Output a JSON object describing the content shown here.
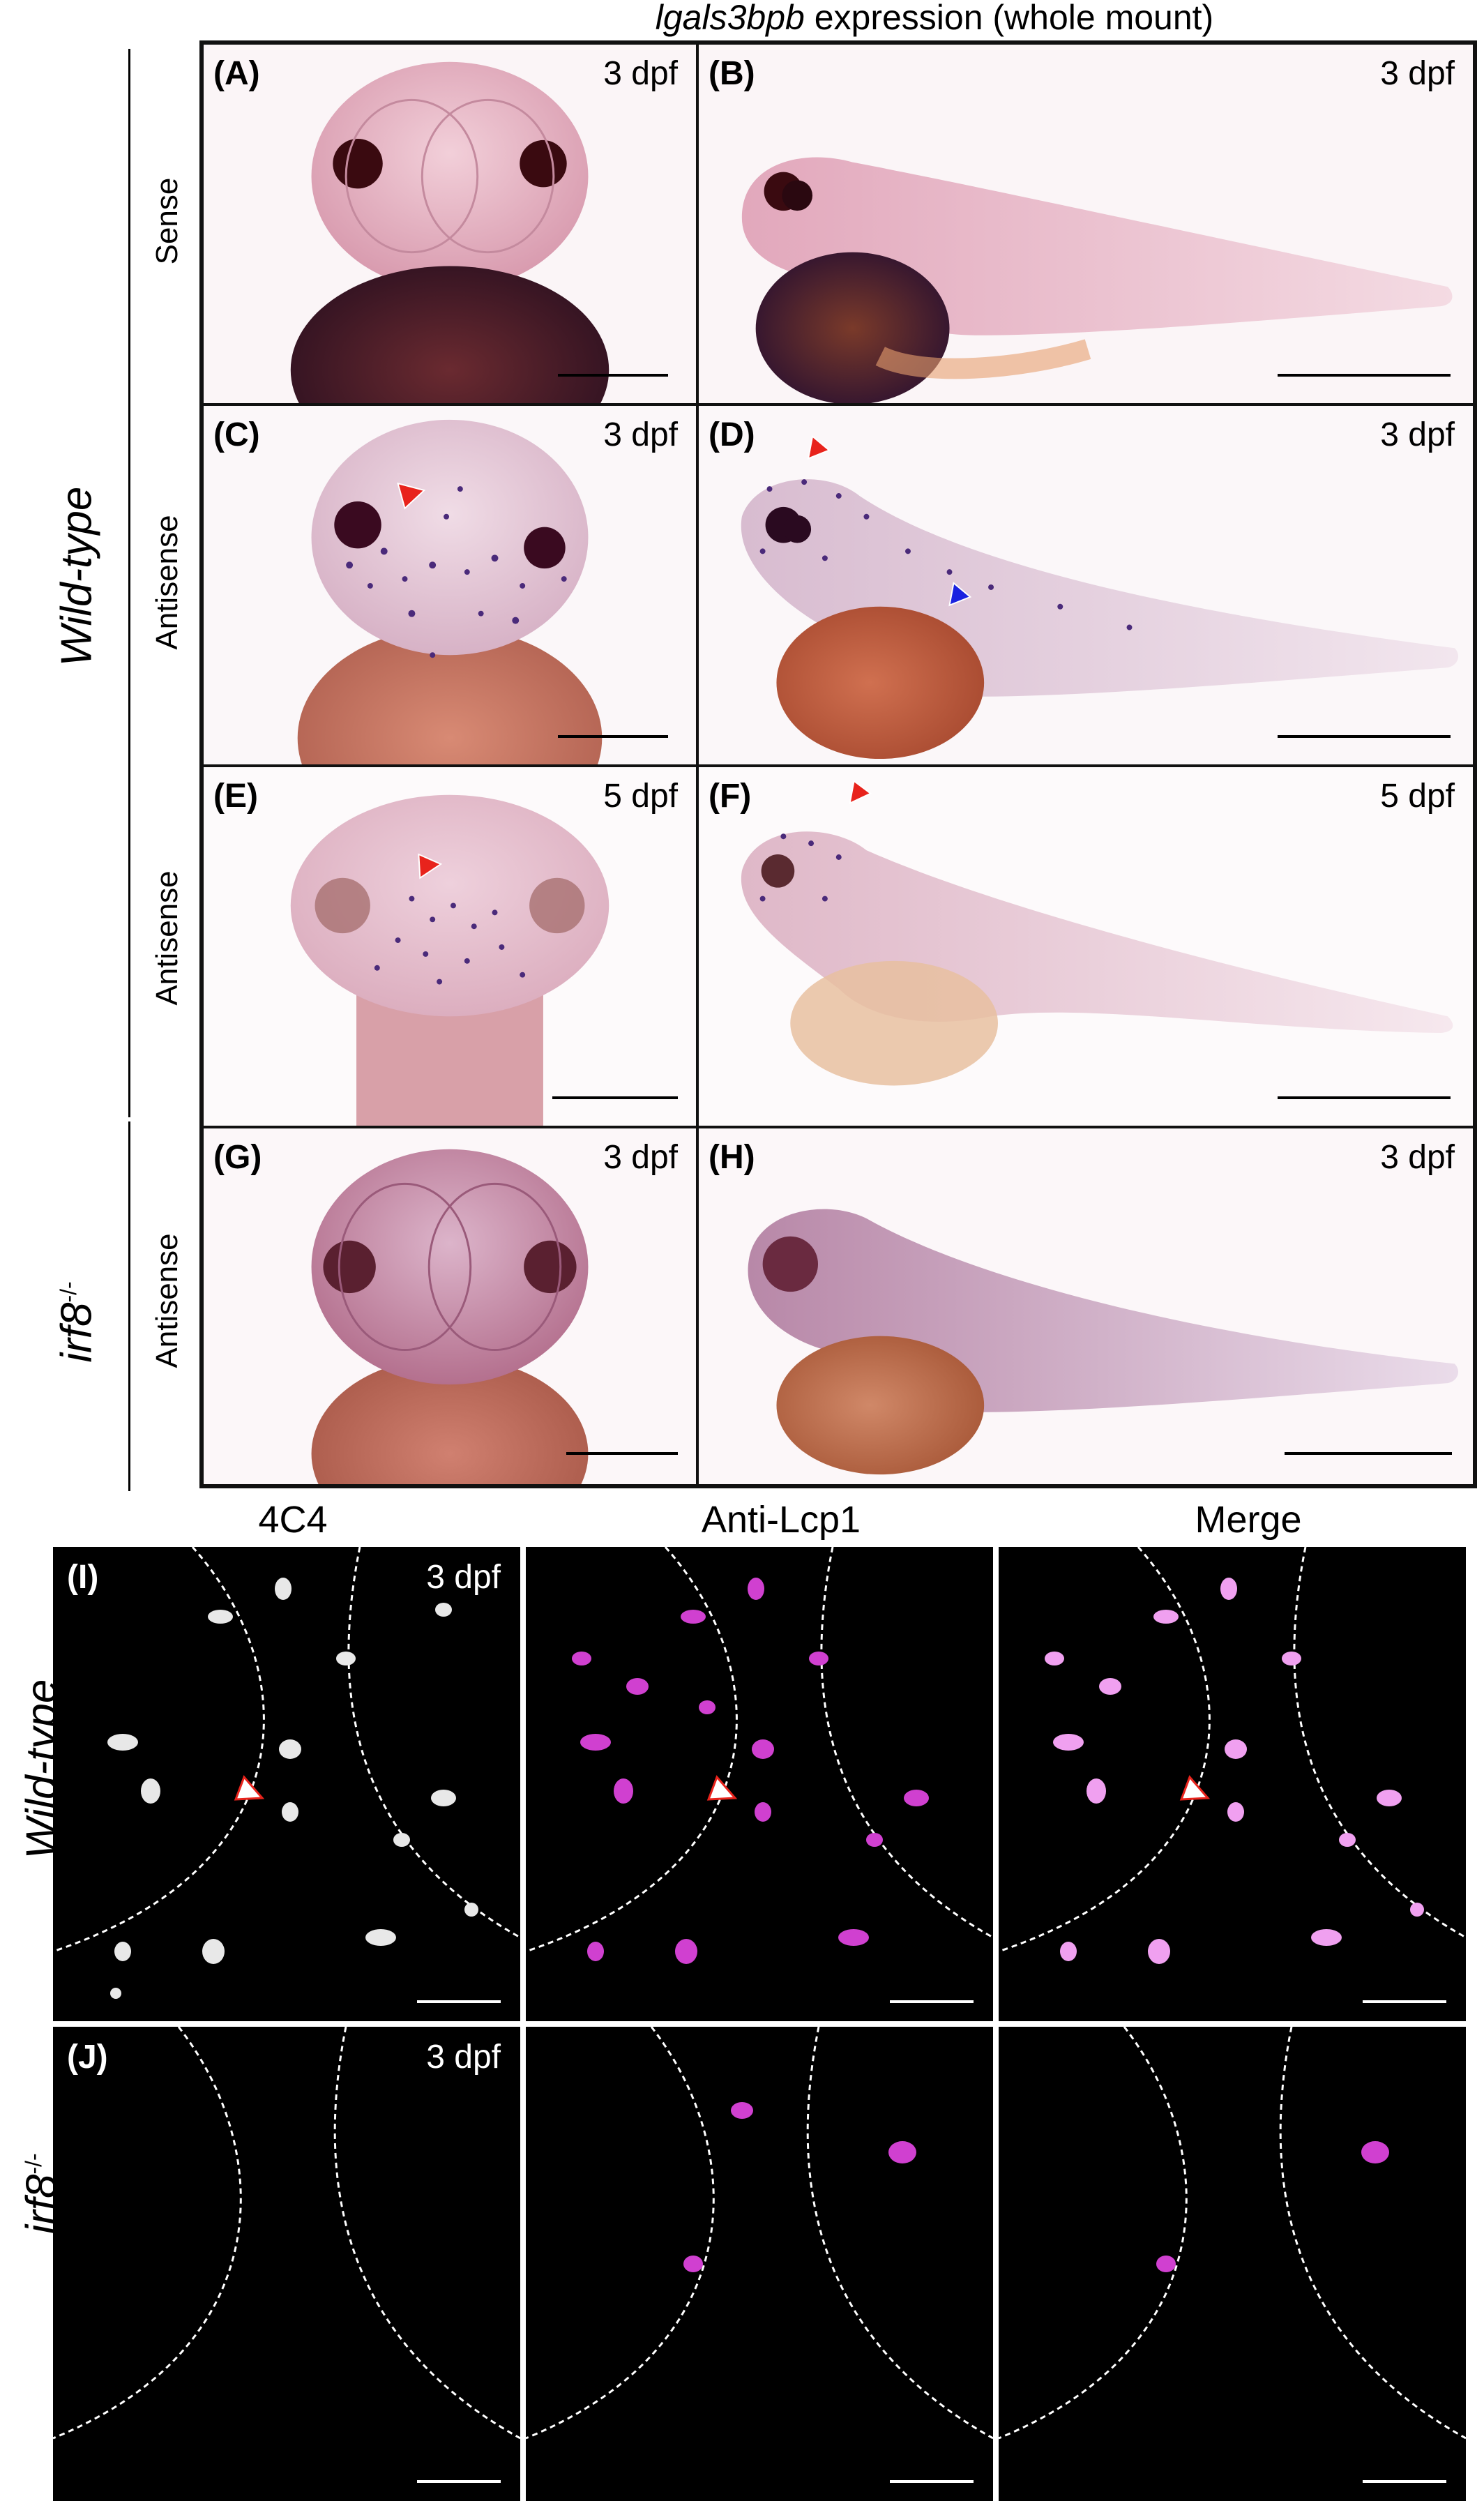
{
  "figure": {
    "title_gene": "lgals3bpb",
    "title_rest": " expression (whole mount)",
    "groups": {
      "wild_type": "Wild-type",
      "irf8": "irf8",
      "irf8_sup": "-/-"
    },
    "row_labels": [
      "Sense",
      "Antisense",
      "Antisense",
      "Antisense"
    ],
    "panels": [
      {
        "id": "A",
        "label": "(A)",
        "stage": "3 dpf",
        "view": "dorsal",
        "probe": "Sense"
      },
      {
        "id": "B",
        "label": "(B)",
        "stage": "3 dpf",
        "view": "lateral",
        "probe": "Sense"
      },
      {
        "id": "C",
        "label": "(C)",
        "stage": "3 dpf",
        "view": "dorsal",
        "probe": "Antisense"
      },
      {
        "id": "D",
        "label": "(D)",
        "stage": "3 dpf",
        "view": "lateral",
        "probe": "Antisense"
      },
      {
        "id": "E",
        "label": "(E)",
        "stage": "5 dpf",
        "view": "dorsal",
        "probe": "Antisense"
      },
      {
        "id": "F",
        "label": "(F)",
        "stage": "5 dpf",
        "view": "lateral",
        "probe": "Antisense"
      },
      {
        "id": "G",
        "label": "(G)",
        "stage": "3 dpf",
        "view": "dorsal",
        "probe": "Antisense"
      },
      {
        "id": "H",
        "label": "(H)",
        "stage": "3 dpf",
        "view": "lateral",
        "probe": "Antisense"
      }
    ],
    "fluorescence": {
      "columns": [
        "4C4",
        "Anti-Lcp1",
        "Merge"
      ],
      "rows": [
        {
          "label": "(I)",
          "stage": "3 dpf",
          "genotype": "Wild-type"
        },
        {
          "label": "(J)",
          "stage": "3 dpf",
          "genotype": "irf8"
        }
      ]
    },
    "colors": {
      "arrow_red": "#e8231c",
      "arrow_blue": "#1a22e0",
      "arrow_white": "#ffffff",
      "magenta": "#e040e0",
      "embryo_pink": "#e8b0c4",
      "yolk_brown": "#a8452e"
    }
  }
}
